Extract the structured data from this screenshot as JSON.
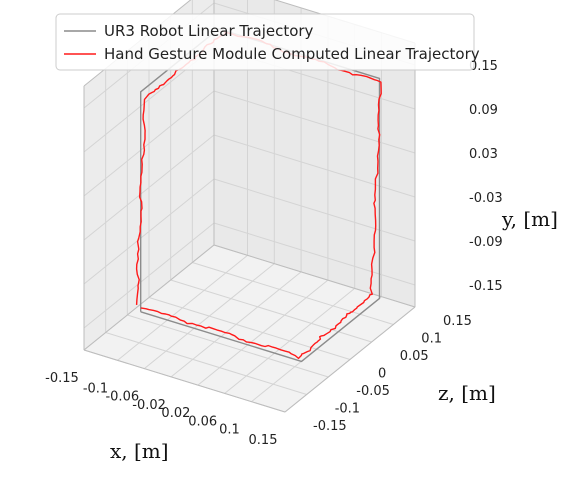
{
  "chart_data": {
    "type": "line",
    "projection": "3d",
    "xlabel": "x, [m]",
    "ylabel": "y, [m]",
    "zlabel": "z, [m]",
    "x_ticks": [
      "-0.15",
      "-0.1",
      "-0.06",
      "-0.02",
      "0.02",
      "0.06",
      "0.1",
      "0.15"
    ],
    "y_ticks": [
      "0.15",
      "0.09",
      "0.03",
      "-0.03",
      "-0.09",
      "-0.15"
    ],
    "z_ticks": [
      "0.15",
      "0.1",
      "0.05",
      "0",
      "-0.05",
      "-0.1",
      "-0.15"
    ],
    "xlim": [
      -0.15,
      0.15
    ],
    "ylim": [
      -0.18,
      0.18
    ],
    "zlim": [
      -0.15,
      0.15
    ],
    "grid": true,
    "legend_position": "top-left",
    "series": [
      {
        "name": "UR3 Robot Linear Trajectory",
        "color": "#8c8c8c",
        "points": [
          {
            "x": -0.13,
            "y": -0.17,
            "z": -0.05
          },
          {
            "x": 0.11,
            "y": -0.17,
            "z": -0.05
          },
          {
            "x": 0.11,
            "y": -0.17,
            "z": 0.13
          },
          {
            "x": 0.11,
            "y": 0.13,
            "z": 0.13
          },
          {
            "x": -0.13,
            "y": 0.13,
            "z": 0.13
          },
          {
            "x": -0.13,
            "y": 0.13,
            "z": -0.05
          },
          {
            "x": -0.13,
            "y": -0.17,
            "z": -0.05
          }
        ]
      },
      {
        "name": "Hand Gesture Module Computed Linear Trajectory",
        "color": "#ff1a1a",
        "points": [
          {
            "x": -0.128,
            "y": -0.162,
            "z": -0.053
          },
          {
            "x": 0.104,
            "y": -0.168,
            "z": -0.045
          },
          {
            "x": 0.103,
            "y": -0.163,
            "z": 0.122
          },
          {
            "x": 0.113,
            "y": 0.126,
            "z": 0.128
          },
          {
            "x": -0.12,
            "y": 0.129,
            "z": 0.132
          },
          {
            "x": -0.128,
            "y": 0.118,
            "z": -0.043
          },
          {
            "x": -0.133,
            "y": -0.159,
            "z": -0.055
          }
        ]
      }
    ]
  }
}
